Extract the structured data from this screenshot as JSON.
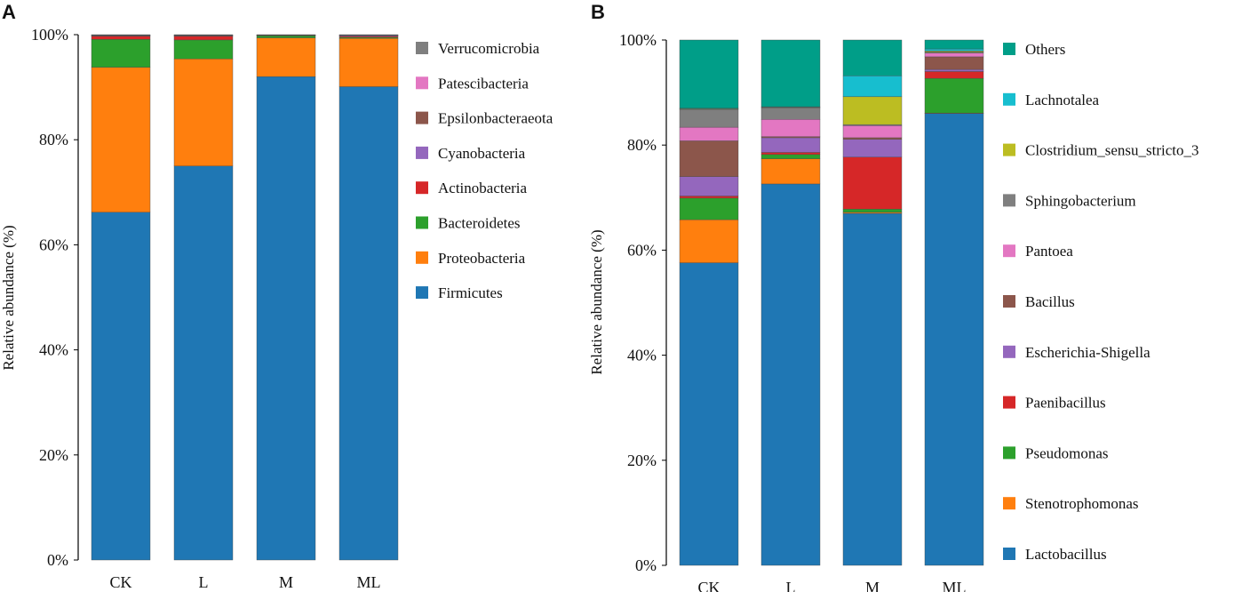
{
  "chart_data": [
    {
      "panel_label": "A",
      "type": "bar",
      "stacked": true,
      "ylabel": "Relative abundance (%)",
      "ylim": [
        0,
        100
      ],
      "yticks": [
        "0%",
        "20%",
        "40%",
        "60%",
        "80%",
        "100%"
      ],
      "categories": [
        "CK",
        "L",
        "M",
        "ML"
      ],
      "series": [
        {
          "name": "Firmicutes",
          "color": "#1f77b4",
          "values": [
            66.2,
            75.0,
            92.0,
            90.1
          ]
        },
        {
          "name": "Proteobacteria",
          "color": "#ff7f0e",
          "values": [
            27.6,
            20.4,
            7.4,
            9.2
          ]
        },
        {
          "name": "Bacteroidetes",
          "color": "#2ca02c",
          "values": [
            5.3,
            3.6,
            0.4,
            0.2
          ]
        },
        {
          "name": "Actinobacteria",
          "color": "#d62728",
          "values": [
            0.6,
            0.7,
            0.05,
            0.2
          ]
        },
        {
          "name": "Cyanobacteria",
          "color": "#9467bd",
          "values": [
            0.1,
            0.1,
            0.05,
            0.15
          ]
        },
        {
          "name": "Epsilonbacteraeota",
          "color": "#8c564b",
          "values": [
            0.1,
            0.1,
            0.05,
            0.05
          ]
        },
        {
          "name": "Patescibacteria",
          "color": "#e377c2",
          "values": [
            0.05,
            0.05,
            0.02,
            0.05
          ]
        },
        {
          "name": "Verrucomicrobia",
          "color": "#7f7f7f",
          "values": [
            0.05,
            0.05,
            0.03,
            0.05
          ]
        }
      ],
      "legend_order": [
        "Verrucomicrobia",
        "Patescibacteria",
        "Epsilonbacteraeota",
        "Cyanobacteria",
        "Actinobacteria",
        "Bacteroidetes",
        "Proteobacteria",
        "Firmicutes"
      ]
    },
    {
      "panel_label": "B",
      "type": "bar",
      "stacked": true,
      "ylabel": "Relative abundance (%)",
      "ylim": [
        0,
        100
      ],
      "yticks": [
        "0%",
        "20%",
        "40%",
        "60%",
        "80%",
        "100%"
      ],
      "categories": [
        "CK",
        "L",
        "M",
        "ML"
      ],
      "series": [
        {
          "name": "Lactobacillus",
          "color": "#1f77b4",
          "values": [
            57.6,
            72.6,
            67.0,
            86.0
          ]
        },
        {
          "name": "Stenotrophomonas",
          "color": "#ff7f0e",
          "values": [
            8.2,
            4.8,
            0.2,
            0.1
          ]
        },
        {
          "name": "Pseudomonas",
          "color": "#2ca02c",
          "values": [
            4.1,
            0.8,
            0.6,
            6.6
          ]
        },
        {
          "name": "Paenibacillus",
          "color": "#d62728",
          "values": [
            0.4,
            0.4,
            9.9,
            1.3
          ]
        },
        {
          "name": "Escherichia-Shigella",
          "color": "#9467bd",
          "values": [
            3.7,
            2.8,
            3.4,
            0.4
          ]
        },
        {
          "name": "Bacillus",
          "color": "#8c564b",
          "values": [
            6.8,
            0.2,
            0.3,
            2.4
          ]
        },
        {
          "name": "Pantoea",
          "color": "#e377c2",
          "values": [
            2.6,
            3.3,
            2.3,
            0.7
          ]
        },
        {
          "name": "Sphingobacterium",
          "color": "#7f7f7f",
          "values": [
            3.4,
            2.2,
            0.2,
            0.2
          ]
        },
        {
          "name": "Clostridium_sensu_stricto_3",
          "color": "#bcbd22",
          "values": [
            0.1,
            0.1,
            5.3,
            0.2
          ]
        },
        {
          "name": "Lachnotalea",
          "color": "#17becf",
          "values": [
            0.1,
            0.1,
            4.0,
            0.4
          ]
        },
        {
          "name": "Others",
          "color": "#009e88",
          "values": [
            13.0,
            12.7,
            6.8,
            1.7
          ]
        }
      ],
      "legend_order": [
        "Others",
        "Lachnotalea",
        "Clostridium_sensu_stricto_3",
        "Sphingobacterium",
        "Pantoea",
        "Bacillus",
        "Escherichia-Shigella",
        "Paenibacillus",
        "Pseudomonas",
        "Stenotrophomonas",
        "Lactobacillus"
      ]
    }
  ]
}
